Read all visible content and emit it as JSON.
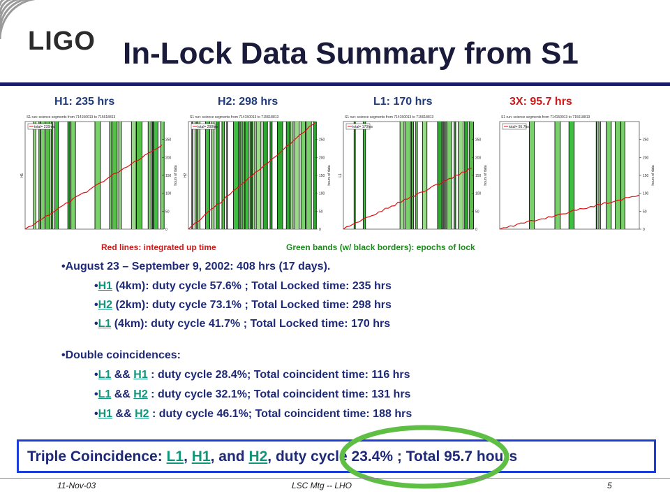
{
  "logo": {
    "text": "LIGO"
  },
  "title": "In-Lock Data Summary from S1",
  "plots": [
    {
      "label": "H1: 235 hrs",
      "panel_title": "S1 run: science segments from 714150013 to 715618813",
      "legend": "total= 235hrs",
      "ylabel": "H1",
      "y2label": "hours of data",
      "y_ticks": [
        "250",
        "200",
        "150",
        "100",
        "50",
        "0"
      ],
      "final_hours": 235
    },
    {
      "label": "H2: 298 hrs",
      "panel_title": "S1 run: science segments from 714150013 to 715618813",
      "legend": "total= 298hrs",
      "ylabel": "H2",
      "y2label": "hours of data",
      "y_ticks": [
        "250",
        "200",
        "150",
        "100",
        "50",
        "0"
      ],
      "final_hours": 298
    },
    {
      "label": "L1: 170 hrs",
      "panel_title": "S1 run: science segments from 714150013 to 715618813",
      "legend": "total= 170hrs",
      "ylabel": "L1",
      "y2label": "hours of data",
      "y_ticks": [
        "250",
        "200",
        "150",
        "100",
        "50",
        "0"
      ],
      "final_hours": 170
    },
    {
      "label": "3X: 95.7 hrs",
      "panel_title": "S1 run: science segments from 714150013 to 715618813",
      "legend": "total= 95.7hrs",
      "ylabel": "",
      "y2label": "hours of data",
      "y_ticks": [
        "250",
        "200",
        "150",
        "100",
        "50",
        "0"
      ],
      "final_hours": 95.7
    }
  ],
  "captions": {
    "red": "Red lines: integrated up time",
    "green": "Green bands (w/ black borders): epochs of lock"
  },
  "bullets": {
    "dates": "August 23 – September 9, 2002: 408 hrs (17 days).",
    "singles": [
      {
        "ifo": "H1",
        "rest": " (4km): duty cycle 57.6% ; Total Locked time: 235 hrs"
      },
      {
        "ifo": "H2",
        "rest": " (2km): duty cycle 73.1% ; Total Locked time: 298 hrs"
      },
      {
        "ifo": "L1",
        "rest": " (4km): duty cycle 41.7% ; Total Locked time: 170 hrs"
      }
    ],
    "double_header": "Double coincidences:",
    "doubles": [
      {
        "a": "L1",
        "b": "H1",
        "rest": " : duty cycle 28.4%; Total coincident time: 116 hrs"
      },
      {
        "a": "L1",
        "b": "H2",
        "rest": " : duty cycle 32.1%; Total coincident time: 131 hrs"
      },
      {
        "a": "H1",
        "b": "H2",
        "rest": " : duty cycle 46.1%; Total coincident time: 188 hrs"
      }
    ],
    "and_sep": " && "
  },
  "triple": {
    "prefix": "Triple Coincidence: ",
    "l1": "L1",
    "comma": ", ",
    "h1": "H1",
    "and": ", and ",
    "h2": "H2",
    "suffix": ", duty cycle 23.4% ; Total 95.7 hours"
  },
  "footer": {
    "date": "11-Nov-03",
    "meeting": "LSC Mtg -- LHO",
    "page": "5"
  },
  "colors": {
    "lock_green": "#33b533",
    "up_time_red": "#e01010",
    "title_blue": "#1a1a3a",
    "link": "#10967a",
    "oval": "#5fbf45"
  }
}
